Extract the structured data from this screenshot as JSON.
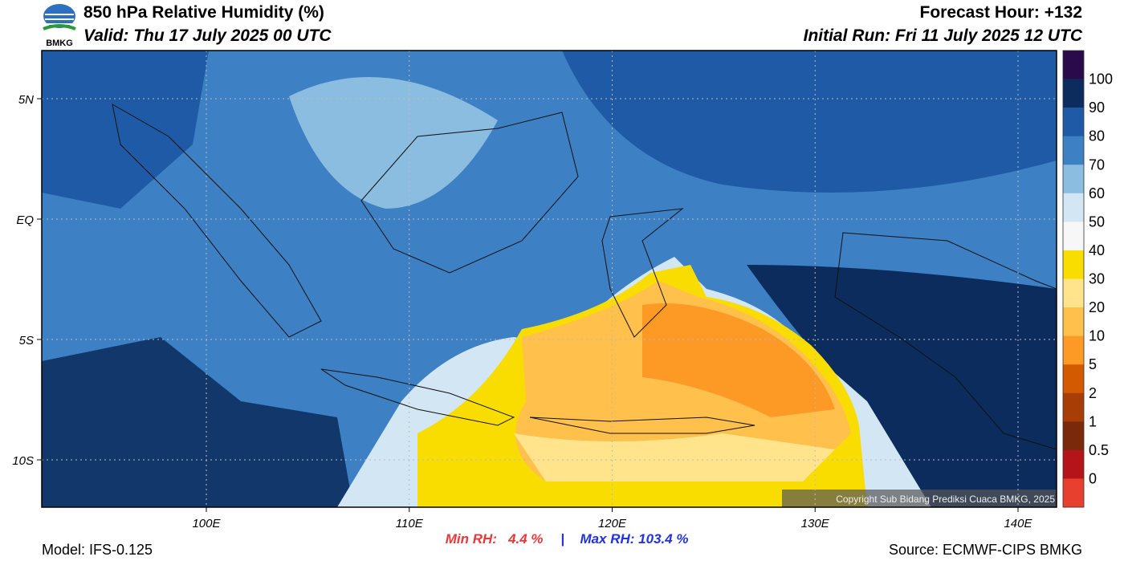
{
  "header": {
    "title": "850 hPa Relative Humidity (%)",
    "valid": "Valid: Thu 17 July 2025 00 UTC",
    "forecast_hour": "Forecast Hour: +132",
    "initial_run": "Initial Run: Fri 11 July 2025 12 UTC",
    "logo": "BMKG"
  },
  "map": {
    "lat_labels": [
      "5N",
      "EQ",
      "5S",
      "10S"
    ],
    "lon_labels": [
      "100E",
      "110E",
      "120E",
      "130E",
      "140E"
    ],
    "copyright": "Copyright Sub Bidang Prediksi Cuaca BMKG, 2025"
  },
  "colorbar": {
    "labels": [
      "100",
      "90",
      "80",
      "70",
      "60",
      "50",
      "40",
      "30",
      "20",
      "10",
      "5",
      "2",
      "1",
      "0.5",
      "0"
    ],
    "colors": [
      "#2a0a4a",
      "#0b2c5c",
      "#1f5aa6",
      "#3d80c4",
      "#8abde0",
      "#d3e6f3",
      "#f7f7f7",
      "#f9dc00",
      "#ffe48c",
      "#ffc04c",
      "#fd9a26",
      "#d45a00",
      "#a83e06",
      "#7a2a0a",
      "#b5141a",
      "#e8402e"
    ]
  },
  "footer": {
    "min_rh": "Min RH:   4.4 %",
    "separator": "|",
    "max_rh": "Max RH: 103.4 %",
    "model": "Model: IFS-0.125",
    "source": "Source: ECMWF-CIPS BMKG"
  }
}
